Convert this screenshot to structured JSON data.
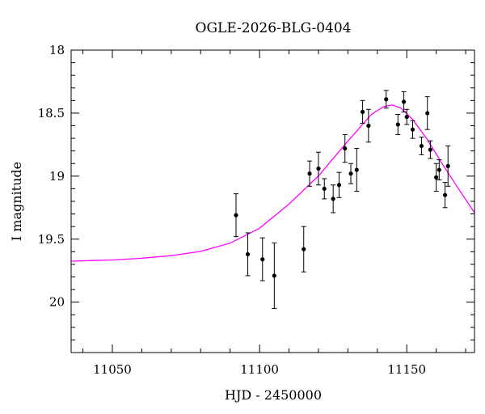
{
  "chart_data": {
    "type": "scatter",
    "title": "OGLE-2026-BLG-0404",
    "xlabel": "HJD - 2450000",
    "ylabel": "I magnitude",
    "xlim": [
      11036,
      11173
    ],
    "ylim": [
      20.4,
      18.0
    ],
    "y_inverted": true,
    "x_ticks": [
      11050,
      11100,
      11150
    ],
    "x_tick_labels": [
      "11050",
      "11100",
      "11150"
    ],
    "y_ticks": [
      18,
      18.5,
      19,
      19.5,
      20
    ],
    "y_tick_labels": [
      "18",
      "18.5",
      "19",
      "19.5",
      "20"
    ],
    "grid": false,
    "points": [
      {
        "x": 11092,
        "y": 19.31,
        "err": 0.17
      },
      {
        "x": 11096,
        "y": 19.62,
        "err": 0.17
      },
      {
        "x": 11101,
        "y": 19.66,
        "err": 0.17
      },
      {
        "x": 11105,
        "y": 19.79,
        "err": 0.26
      },
      {
        "x": 11115,
        "y": 19.58,
        "err": 0.18
      },
      {
        "x": 11117,
        "y": 18.98,
        "err": 0.1
      },
      {
        "x": 11120,
        "y": 18.94,
        "err": 0.13
      },
      {
        "x": 11122,
        "y": 19.1,
        "err": 0.08
      },
      {
        "x": 11125,
        "y": 19.18,
        "err": 0.11
      },
      {
        "x": 11127,
        "y": 19.07,
        "err": 0.1
      },
      {
        "x": 11129,
        "y": 18.78,
        "err": 0.11
      },
      {
        "x": 11131,
        "y": 18.98,
        "err": 0.08
      },
      {
        "x": 11133,
        "y": 18.95,
        "err": 0.17
      },
      {
        "x": 11135,
        "y": 18.49,
        "err": 0.09
      },
      {
        "x": 11137,
        "y": 18.6,
        "err": 0.13
      },
      {
        "x": 11143,
        "y": 18.39,
        "err": 0.07
      },
      {
        "x": 11147,
        "y": 18.59,
        "err": 0.08
      },
      {
        "x": 11149,
        "y": 18.41,
        "err": 0.08
      },
      {
        "x": 11150,
        "y": 18.53,
        "err": 0.06
      },
      {
        "x": 11152,
        "y": 18.63,
        "err": 0.07
      },
      {
        "x": 11155,
        "y": 18.76,
        "err": 0.07
      },
      {
        "x": 11157,
        "y": 18.5,
        "err": 0.13
      },
      {
        "x": 11158,
        "y": 18.79,
        "err": 0.07
      },
      {
        "x": 11160,
        "y": 19.01,
        "err": 0.11
      },
      {
        "x": 11161,
        "y": 18.95,
        "err": 0.08
      },
      {
        "x": 11163,
        "y": 19.15,
        "err": 0.1
      },
      {
        "x": 11164,
        "y": 18.92,
        "err": 0.16
      }
    ],
    "model_curve": {
      "color": "#ff00ff",
      "points": [
        [
          11036,
          19.675
        ],
        [
          11050,
          19.665
        ],
        [
          11060,
          19.652
        ],
        [
          11070,
          19.631
        ],
        [
          11080,
          19.597
        ],
        [
          11090,
          19.532
        ],
        [
          11100,
          19.414
        ],
        [
          11110,
          19.222
        ],
        [
          11120,
          18.998
        ],
        [
          11130,
          18.721
        ],
        [
          11138,
          18.51
        ],
        [
          11142,
          18.45
        ],
        [
          11145,
          18.435
        ],
        [
          11148,
          18.46
        ],
        [
          11152,
          18.55
        ],
        [
          11157,
          18.71
        ],
        [
          11162,
          18.9
        ],
        [
          11167,
          19.08
        ],
        [
          11173,
          19.29
        ]
      ]
    },
    "colors": {
      "points": "#000000",
      "frame": "#000000"
    }
  }
}
